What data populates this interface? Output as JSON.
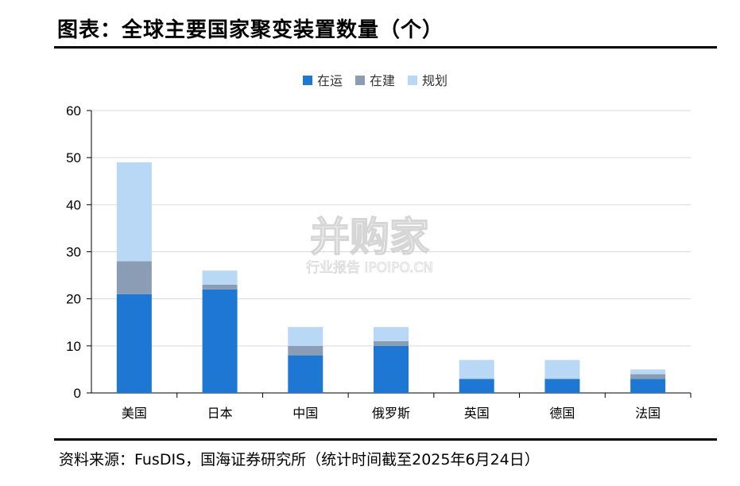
{
  "title": "图表：全球主要国家聚变装置数量（个）",
  "source": "资料来源：FusDIS，国海证券研究所（统计时间截至2025年6月24日）",
  "watermark": {
    "main": "并购家",
    "sub": "行业报告 IPOIPO.CN"
  },
  "colors": {
    "operating": "#1f77d4",
    "construction": "#8a9db5",
    "planned": "#b8d8f5"
  },
  "chart_data": {
    "type": "bar",
    "stacked": true,
    "categories": [
      "美国",
      "日本",
      "中国",
      "俄罗斯",
      "英国",
      "德国",
      "法国"
    ],
    "series": [
      {
        "name": "在运",
        "values": [
          21,
          22,
          8,
          10,
          3,
          3,
          3
        ]
      },
      {
        "name": "在建",
        "values": [
          7,
          1,
          2,
          1,
          0,
          0,
          1
        ]
      },
      {
        "name": "规划",
        "values": [
          21,
          3,
          4,
          3,
          4,
          4,
          1
        ]
      }
    ],
    "ylim": [
      0,
      60
    ],
    "yticks": [
      "0",
      "10",
      "20",
      "30",
      "40",
      "50",
      "60"
    ],
    "grid": true,
    "legend": "top-center"
  }
}
